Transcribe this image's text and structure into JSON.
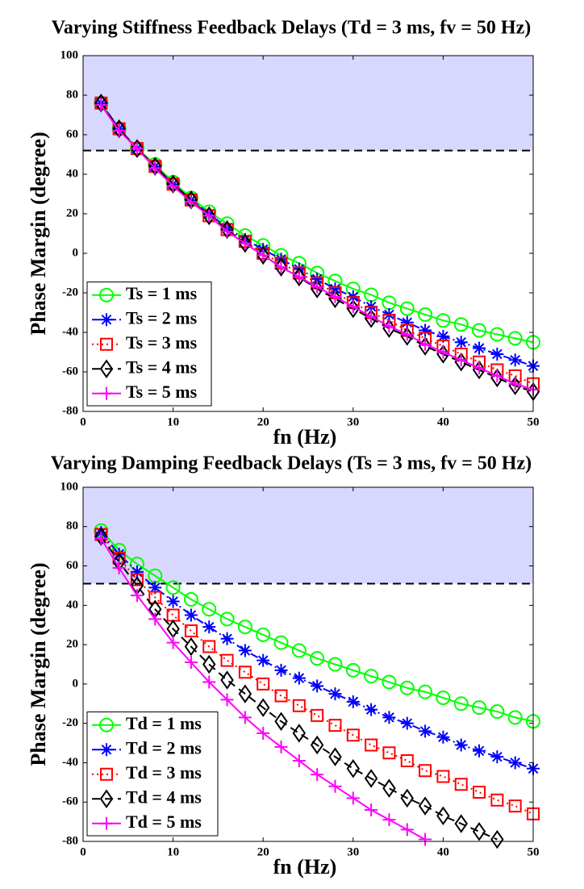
{
  "chart_data": [
    {
      "type": "line",
      "title": "Varying Stiffness Feedback Delays (Td = 3 ms, fv = 50 Hz)",
      "x_label": "fn (Hz)",
      "y_label": "Phase Margin (degree)",
      "x": [
        2,
        4,
        6,
        8,
        10,
        12,
        14,
        16,
        18,
        20,
        22,
        24,
        26,
        28,
        30,
        32,
        34,
        36,
        38,
        40,
        42,
        44,
        46,
        48,
        50
      ],
      "xlim": [
        0,
        50
      ],
      "xticks": [
        0,
        10,
        20,
        30,
        40,
        50
      ],
      "ylim": [
        -80,
        100
      ],
      "yticks": [
        -80,
        -60,
        -40,
        -20,
        0,
        20,
        40,
        60,
        80,
        100
      ],
      "threshold": 52,
      "shade_color": "#d8d8ff",
      "legend": "lower left",
      "series": [
        {
          "name": "Ts = 1 ms",
          "color": "#00ff00",
          "marker": "circle",
          "dash": "solid",
          "values": [
            76,
            63,
            53,
            45,
            36,
            28,
            21,
            15,
            9,
            4,
            -1,
            -5,
            -10,
            -14,
            -18,
            -21,
            -25,
            -28,
            -31,
            -34,
            -36,
            -39,
            -41,
            -43,
            -45
          ]
        },
        {
          "name": "Ts = 2 ms",
          "color": "#0000ff",
          "marker": "star",
          "dash": "dashdot",
          "values": [
            76,
            63,
            53,
            44,
            35,
            27,
            20,
            13,
            7,
            2,
            -3,
            -8,
            -13,
            -18,
            -22,
            -27,
            -31,
            -35,
            -39,
            -42,
            -45,
            -48,
            -51,
            -54,
            -57
          ]
        },
        {
          "name": "Ts = 3 ms",
          "color": "#ff0000",
          "marker": "square",
          "dash": "dotted",
          "values": [
            76,
            63,
            53,
            44,
            35,
            27,
            19,
            12,
            6,
            0,
            -5,
            -10,
            -15,
            -20,
            -25,
            -30,
            -34,
            -39,
            -43,
            -47,
            -51,
            -55,
            -59,
            -62,
            -66
          ]
        },
        {
          "name": "Ts = 4 ms",
          "color": "#000000",
          "marker": "diamond",
          "dash": "dashed",
          "values": [
            76,
            63,
            53,
            44,
            35,
            27,
            19,
            12,
            5,
            -1,
            -7,
            -12,
            -18,
            -23,
            -28,
            -33,
            -38,
            -42,
            -47,
            -51,
            -55,
            -59,
            -63,
            -67,
            -70
          ]
        },
        {
          "name": "Ts = 5 ms",
          "color": "#ff00ff",
          "marker": "plus",
          "dash": "solid",
          "values": [
            75,
            62,
            53,
            43,
            34,
            26,
            19,
            11,
            5,
            -1,
            -7,
            -12,
            -17,
            -22,
            -27,
            -32,
            -37,
            -41,
            -46,
            -50,
            -54,
            -58,
            -62,
            -66,
            -69
          ]
        }
      ]
    },
    {
      "type": "line",
      "title": "Varying Damping Feedback Delays (Ts = 3 ms, fv = 50 Hz)",
      "x_label": "fn (Hz)",
      "y_label": "Phase Margin (degree)",
      "x": [
        2,
        4,
        6,
        8,
        10,
        12,
        14,
        16,
        18,
        20,
        22,
        24,
        26,
        28,
        30,
        32,
        34,
        36,
        38,
        40,
        42,
        44,
        46,
        48,
        50
      ],
      "xlim": [
        0,
        50
      ],
      "xticks": [
        0,
        10,
        20,
        30,
        40,
        50
      ],
      "ylim": [
        -80,
        100
      ],
      "yticks": [
        -80,
        -60,
        -40,
        -20,
        0,
        20,
        40,
        60,
        80,
        100
      ],
      "threshold": 51,
      "shade_color": "#d8d8ff",
      "legend": "lower left",
      "series": [
        {
          "name": "Td = 1 ms",
          "color": "#00ff00",
          "marker": "circle",
          "dash": "solid",
          "values": [
            78,
            68,
            61,
            55,
            49,
            43,
            38,
            33,
            29,
            25,
            21,
            17,
            13,
            10,
            7,
            4,
            1,
            -2,
            -4,
            -7,
            -10,
            -12,
            -14,
            -17,
            -19
          ]
        },
        {
          "name": "Td = 2 ms",
          "color": "#0000ff",
          "marker": "star",
          "dash": "dashdot",
          "values": [
            77,
            66,
            57,
            49,
            42,
            35,
            29,
            23,
            17,
            12,
            7,
            3,
            -1,
            -5,
            -9,
            -13,
            -17,
            -20,
            -24,
            -27,
            -31,
            -34,
            -37,
            -40,
            -43
          ]
        },
        {
          "name": "Td = 3 ms",
          "color": "#ff0000",
          "marker": "square",
          "dash": "dotted",
          "values": [
            76,
            64,
            53,
            44,
            35,
            27,
            19,
            12,
            6,
            0,
            -6,
            -11,
            -16,
            -21,
            -26,
            -31,
            -35,
            -39,
            -44,
            -47,
            -51,
            -55,
            -59,
            -62,
            -66
          ]
        },
        {
          "name": "Td = 4 ms",
          "color": "#000000",
          "marker": "diamond",
          "dash": "dashed",
          "values": [
            75,
            62,
            50,
            38,
            28,
            19,
            10,
            2,
            -5,
            -12,
            -19,
            -25,
            -31,
            -37,
            -43,
            -48,
            -53,
            -58,
            -62,
            -67,
            -71,
            -75,
            -79,
            null,
            null
          ]
        },
        {
          "name": "Td = 5 ms",
          "color": "#ff00ff",
          "marker": "plus",
          "dash": "solid",
          "values": [
            74,
            59,
            45,
            33,
            21,
            11,
            1,
            -8,
            -17,
            -25,
            -32,
            -39,
            -46,
            -52,
            -58,
            -64,
            -69,
            -74,
            -79,
            null,
            null,
            null,
            null,
            null,
            null
          ]
        }
      ]
    }
  ]
}
